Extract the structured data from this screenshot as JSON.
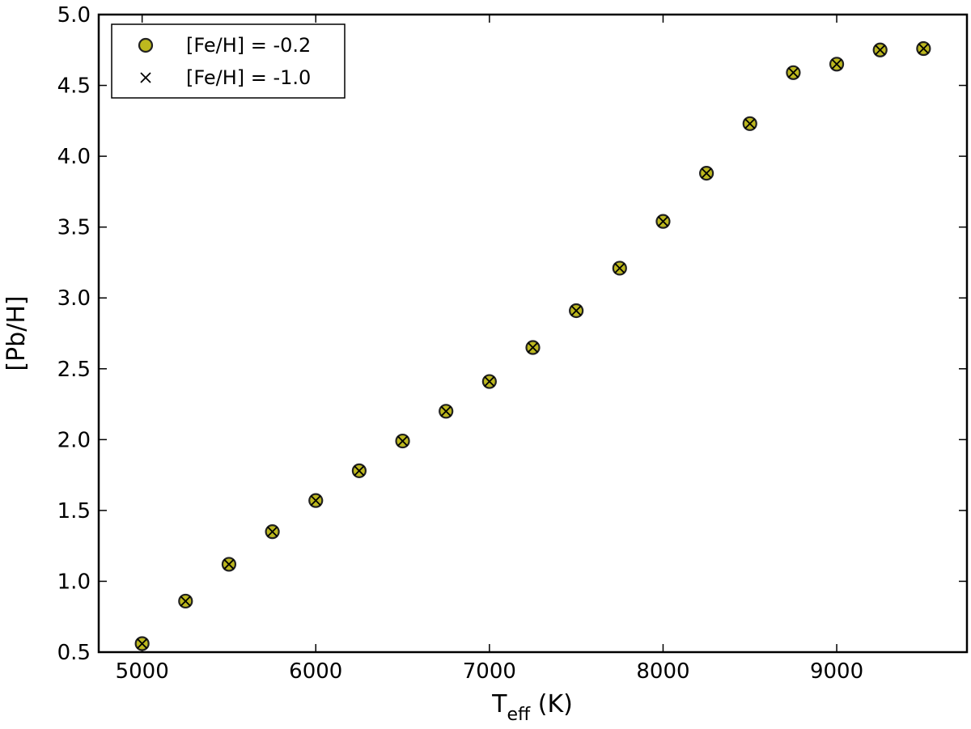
{
  "chart_data": {
    "type": "scatter",
    "xlabel": {
      "main": "T",
      "sub": "eff",
      "unit": " (K)"
    },
    "ylabel": "[Pb/H]",
    "xlim": [
      4750,
      9750
    ],
    "ylim": [
      0.5,
      5.0
    ],
    "x_ticks": [
      5000,
      6000,
      7000,
      8000,
      9000
    ],
    "y_ticks": [
      "0.5",
      "1.0",
      "1.5",
      "2.0",
      "2.5",
      "3.0",
      "3.5",
      "4.0",
      "4.5",
      "5.0"
    ],
    "grid": false,
    "legend_position": "top-left",
    "series": [
      {
        "name": "[Fe/H] = -0.2",
        "marker": "circle",
        "color": "#bdb81e",
        "edge_color": "#222222",
        "x": [
          5000,
          5250,
          5500,
          5750,
          6000,
          6250,
          6500,
          6750,
          7000,
          7250,
          7500,
          7750,
          8000,
          8250,
          8500,
          8750,
          9000,
          9250,
          9500
        ],
        "y": [
          0.56,
          0.86,
          1.12,
          1.35,
          1.57,
          1.78,
          1.99,
          2.2,
          2.41,
          2.65,
          2.91,
          3.21,
          3.54,
          3.88,
          4.23,
          4.59,
          4.65,
          4.75,
          4.76
        ]
      },
      {
        "name": "[Fe/H] = -1.0",
        "marker": "x",
        "color": "#000000",
        "x": [
          5000,
          5250,
          5500,
          5750,
          6000,
          6250,
          6500,
          6750,
          7000,
          7250,
          7500,
          7750,
          8000,
          8250,
          8500,
          8750,
          9000,
          9250,
          9500
        ],
        "y": [
          0.56,
          0.86,
          1.12,
          1.35,
          1.57,
          1.78,
          1.99,
          2.2,
          2.41,
          2.65,
          2.91,
          3.21,
          3.54,
          3.88,
          4.23,
          4.59,
          4.65,
          4.75,
          4.76
        ]
      }
    ]
  }
}
